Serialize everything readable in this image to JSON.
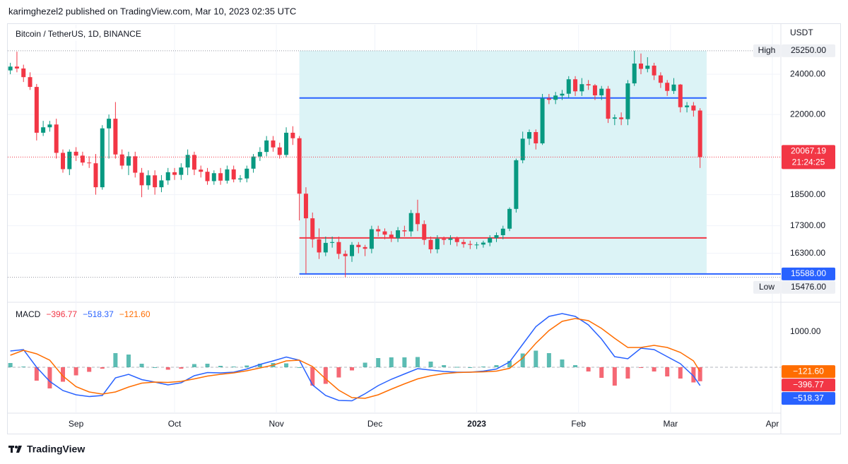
{
  "header": {
    "text": "karimghezel2 published on TradingView.com, Mar 10, 2023 02:35 UTC"
  },
  "footer": {
    "brand": "TradingView"
  },
  "chart_data": [
    {
      "type": "candlestick",
      "title": "Bitcoin / TetherUS, 1D, BINANCE",
      "y_label": "USDT",
      "log_scale": true,
      "grid": true,
      "up_color": "#089981",
      "down_color": "#f23645",
      "x": [
        0,
        2,
        4,
        6,
        8,
        10,
        12,
        14,
        16,
        18,
        20,
        22,
        24,
        26,
        28,
        30,
        32,
        34,
        36,
        38,
        40,
        42,
        44,
        46,
        48,
        50,
        52,
        54,
        56,
        58,
        60,
        62,
        64,
        66,
        68,
        70,
        72,
        74,
        76,
        78,
        80,
        82,
        84,
        86,
        88,
        90,
        92,
        94,
        96,
        98,
        100,
        102,
        104,
        106,
        108,
        110,
        112,
        114,
        116,
        118,
        120,
        122,
        124,
        126,
        128,
        130,
        132,
        134,
        136,
        138,
        140,
        142,
        144,
        146,
        148,
        150,
        152,
        154,
        156,
        158,
        160,
        162,
        164,
        166,
        168,
        170,
        172,
        174,
        176,
        178,
        180,
        182,
        184,
        186,
        188,
        190,
        192,
        194,
        196,
        198,
        200,
        202,
        204,
        206,
        208,
        210
      ],
      "open": [
        24200,
        24400,
        24300,
        23850,
        23350,
        21150,
        21400,
        21530,
        20250,
        19550,
        20300,
        20130,
        19830,
        19800,
        18800,
        21350,
        21800,
        20180,
        19700,
        20100,
        19400,
        18880,
        19290,
        18800,
        19080,
        19420,
        19310,
        19620,
        20160,
        19530,
        19440,
        19050,
        19380,
        19070,
        19540,
        19120,
        19160,
        19570,
        20090,
        20290,
        20800,
        20490,
        20160,
        21150,
        20900,
        18540,
        17580,
        16800,
        16330,
        16670,
        16700,
        16280,
        16200,
        16600,
        16520,
        16460,
        17170,
        17090,
        16970,
        16840,
        17130,
        17090,
        17780,
        17360,
        16780,
        16440,
        16820,
        16780,
        16830,
        16700,
        16630,
        16600,
        16610,
        16680,
        16850,
        16950,
        17190,
        17940,
        19930,
        20880,
        21180,
        20670,
        22780,
        22710,
        22920,
        23010,
        23740,
        23130,
        23490,
        23430,
        22930,
        23260,
        21800,
        21860,
        21780,
        23530,
        24560,
        24280,
        24450,
        23940,
        23560,
        23150,
        23470,
        22350,
        22430,
        22190
      ],
      "high": [
        24600,
        25200,
        24500,
        24100,
        23500,
        21700,
        21700,
        21800,
        20400,
        20400,
        20500,
        20300,
        20100,
        20200,
        21500,
        22000,
        22600,
        20400,
        20300,
        20300,
        19600,
        19500,
        19500,
        19300,
        19600,
        19600,
        19800,
        20400,
        20300,
        19700,
        19600,
        19500,
        19600,
        19700,
        19700,
        19300,
        19700,
        20200,
        20500,
        21000,
        21000,
        20700,
        21400,
        21450,
        21000,
        18800,
        17800,
        17200,
        16900,
        16900,
        16900,
        16400,
        16700,
        16700,
        16600,
        17300,
        17300,
        17200,
        17100,
        17250,
        17300,
        17900,
        18300,
        17500,
        16900,
        16950,
        16900,
        16950,
        16900,
        16800,
        16750,
        16700,
        16750,
        16950,
        17050,
        17300,
        18000,
        20000,
        21200,
        21300,
        21300,
        23000,
        23000,
        23100,
        23200,
        23900,
        23900,
        23800,
        23700,
        23500,
        23400,
        23400,
        22000,
        22100,
        23700,
        25250,
        25100,
        24900,
        24600,
        24100,
        23700,
        23800,
        23500,
        22600,
        22600,
        22300
      ],
      "low": [
        24000,
        24100,
        23600,
        23200,
        20800,
        21000,
        21200,
        20000,
        19400,
        19300,
        19900,
        19700,
        19600,
        18500,
        18700,
        20000,
        20000,
        19550,
        19300,
        19200,
        18400,
        18700,
        18500,
        18600,
        18900,
        19100,
        19100,
        19300,
        19300,
        19200,
        18900,
        18900,
        18900,
        18950,
        19000,
        19000,
        19000,
        19400,
        19900,
        20100,
        20300,
        20000,
        20050,
        20600,
        17500,
        15600,
        16500,
        16100,
        16200,
        16500,
        16100,
        15476,
        16000,
        16300,
        16200,
        16300,
        16900,
        16800,
        16700,
        16700,
        16900,
        16900,
        17100,
        16600,
        16300,
        16300,
        16600,
        16600,
        16550,
        16500,
        16450,
        16450,
        16500,
        16550,
        16700,
        16800,
        17100,
        17800,
        19800,
        20600,
        20400,
        20600,
        22500,
        22500,
        22700,
        22800,
        22900,
        22900,
        23200,
        22700,
        22700,
        21600,
        21500,
        21500,
        21500,
        23400,
        24000,
        24100,
        23700,
        23300,
        22900,
        23000,
        22100,
        22100,
        21900,
        19600
      ],
      "close": [
        24400,
        24300,
        23850,
        23350,
        21150,
        21400,
        21530,
        20250,
        19550,
        20300,
        20130,
        19830,
        19800,
        18800,
        21350,
        21800,
        20180,
        19700,
        20100,
        19400,
        18880,
        19290,
        18800,
        19080,
        19420,
        19310,
        19620,
        20160,
        19530,
        19440,
        19050,
        19380,
        19070,
        19540,
        19120,
        19160,
        19570,
        20090,
        20290,
        20800,
        20490,
        20160,
        21150,
        20900,
        18540,
        17580,
        16800,
        16330,
        16670,
        16700,
        16280,
        16200,
        16600,
        16520,
        16460,
        17170,
        17090,
        16970,
        16840,
        17130,
        17090,
        17780,
        17360,
        16780,
        16440,
        16820,
        16780,
        16830,
        16700,
        16630,
        16600,
        16610,
        16680,
        16850,
        16950,
        17190,
        17940,
        19930,
        20880,
        21180,
        20670,
        22780,
        22710,
        22920,
        23010,
        23740,
        23130,
        23490,
        23430,
        22930,
        23260,
        21800,
        21860,
        21780,
        23530,
        24560,
        24280,
        24450,
        23940,
        23560,
        23150,
        23470,
        22350,
        22430,
        22190,
        20067.19
      ],
      "countdown": "21:24:25",
      "xlim": [
        -1,
        234.6
      ],
      "xticks": [
        {
          "value": 20,
          "label": "Sep"
        },
        {
          "value": 50,
          "label": "Oct"
        },
        {
          "value": 81,
          "label": "Nov"
        },
        {
          "value": 111,
          "label": "Dec"
        },
        {
          "value": 142,
          "label": "2023"
        },
        {
          "value": 173,
          "label": "Feb"
        },
        {
          "value": 201,
          "label": "Mar"
        },
        {
          "value": 232,
          "label": "Apr"
        }
      ],
      "ylim": [
        14730,
        26710
      ],
      "yticks": [
        {
          "value": 24000,
          "label": "24000.00"
        },
        {
          "value": 22000,
          "label": "22000.00"
        },
        {
          "value": 18500,
          "label": "18500.00"
        },
        {
          "value": 17300,
          "label": "17300.00"
        },
        {
          "value": 16300,
          "label": "16300.00"
        }
      ],
      "high_mark": {
        "value": 25250,
        "label": "25250.00",
        "caption": "High"
      },
      "low_mark": {
        "value": 15476,
        "label": "15476.00",
        "caption": "Low"
      },
      "volume_profile": {
        "x": [
          88,
          212
        ],
        "high": 25250,
        "low": {
          "value": 15588,
          "label": "15588.00"
        },
        "fill": "#dcf3f6",
        "low_color": "#2962ff",
        "levels": [
          {
            "value": 22800,
            "color": "#2962ff"
          },
          {
            "value": 16850,
            "color": "#f23645"
          }
        ]
      }
    },
    {
      "type": "macd",
      "title": "MACD",
      "x": [
        0,
        4,
        8,
        12,
        16,
        20,
        24,
        28,
        32,
        36,
        40,
        44,
        48,
        52,
        56,
        60,
        64,
        68,
        72,
        76,
        80,
        84,
        88,
        92,
        96,
        100,
        104,
        108,
        112,
        116,
        120,
        124,
        128,
        132,
        136,
        140,
        144,
        148,
        152,
        156,
        160,
        164,
        168,
        172,
        176,
        180,
        184,
        188,
        192,
        196,
        200,
        204,
        208,
        210
      ],
      "xlim": [
        -1,
        234.6
      ],
      "ylim": [
        -1300,
        1800
      ],
      "yticks": [
        {
          "value": 1000,
          "label": "1000.00"
        }
      ],
      "series": [
        {
          "style": "histogram",
          "color": "#f23645",
          "up_color": "#26a69a",
          "last_label": "−396.77",
          "values": [
            120,
            20,
            -380,
            -600,
            -410,
            -230,
            -130,
            -40,
            400,
            360,
            100,
            0,
            -70,
            -40,
            90,
            100,
            40,
            20,
            50,
            100,
            120,
            110,
            0,
            -520,
            -470,
            -290,
            -90,
            130,
            260,
            280,
            280,
            290,
            160,
            60,
            10,
            0,
            20,
            60,
            180,
            390,
            470,
            400,
            220,
            60,
            -120,
            -300,
            -520,
            -320,
            -20,
            -120,
            -260,
            -320,
            -430,
            -396.77
          ]
        },
        {
          "style": "line",
          "color": "#2962ff",
          "last_label": "−518.37",
          "values": [
            460,
            500,
            0,
            -400,
            -660,
            -780,
            -830,
            -800,
            -300,
            -200,
            -350,
            -420,
            -500,
            -440,
            -240,
            -150,
            -160,
            -140,
            -50,
            80,
            180,
            290,
            200,
            -500,
            -800,
            -940,
            -950,
            -750,
            -520,
            -340,
            -190,
            -40,
            -80,
            -120,
            -140,
            -140,
            -110,
            -50,
            150,
            650,
            1150,
            1440,
            1520,
            1440,
            1200,
            800,
            300,
            240,
            540,
            500,
            300,
            100,
            -250,
            -518.37
          ]
        },
        {
          "style": "line",
          "color": "#ff6d00",
          "last_label": "−121.60",
          "values": [
            340,
            480,
            380,
            200,
            -250,
            -550,
            -700,
            -760,
            -700,
            -560,
            -450,
            -420,
            -430,
            -400,
            -330,
            -250,
            -200,
            -160,
            -100,
            -20,
            60,
            180,
            200,
            20,
            -330,
            -650,
            -860,
            -880,
            -780,
            -620,
            -470,
            -330,
            -240,
            -180,
            -150,
            -140,
            -130,
            -110,
            -30,
            260,
            680,
            1040,
            1300,
            1380,
            1320,
            1100,
            820,
            560,
            560,
            620,
            560,
            420,
            180,
            -121.6
          ]
        }
      ]
    }
  ]
}
